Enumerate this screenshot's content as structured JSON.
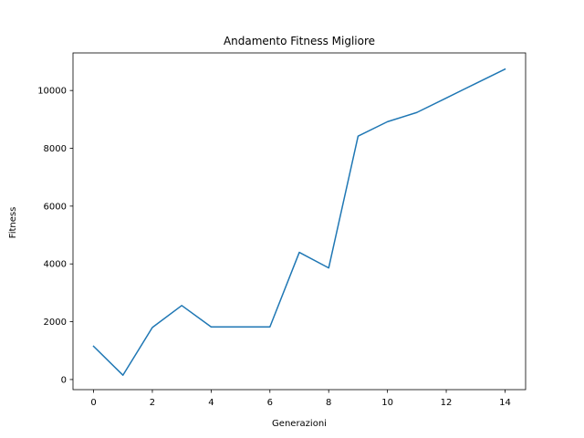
{
  "chart_data": {
    "type": "line",
    "title": "Andamento Fitness Migliore",
    "xlabel": "Generazioni",
    "ylabel": "Fitness",
    "xlim": [
      -0.7,
      14.7
    ],
    "ylim": [
      -350,
      11300
    ],
    "xticks": [
      0,
      2,
      4,
      6,
      8,
      10,
      12,
      14
    ],
    "yticks": [
      0,
      2000,
      4000,
      6000,
      8000,
      10000
    ],
    "grid": false,
    "series": [
      {
        "color": "#1f77b4",
        "x": [
          0,
          1,
          2,
          3,
          4,
          5,
          6,
          7,
          8,
          9,
          10,
          11,
          12,
          13,
          14
        ],
        "y": [
          1150,
          150,
          1800,
          2560,
          1820,
          1820,
          1820,
          4400,
          3860,
          8420,
          8920,
          9240,
          9740,
          10240,
          10740
        ]
      }
    ]
  }
}
